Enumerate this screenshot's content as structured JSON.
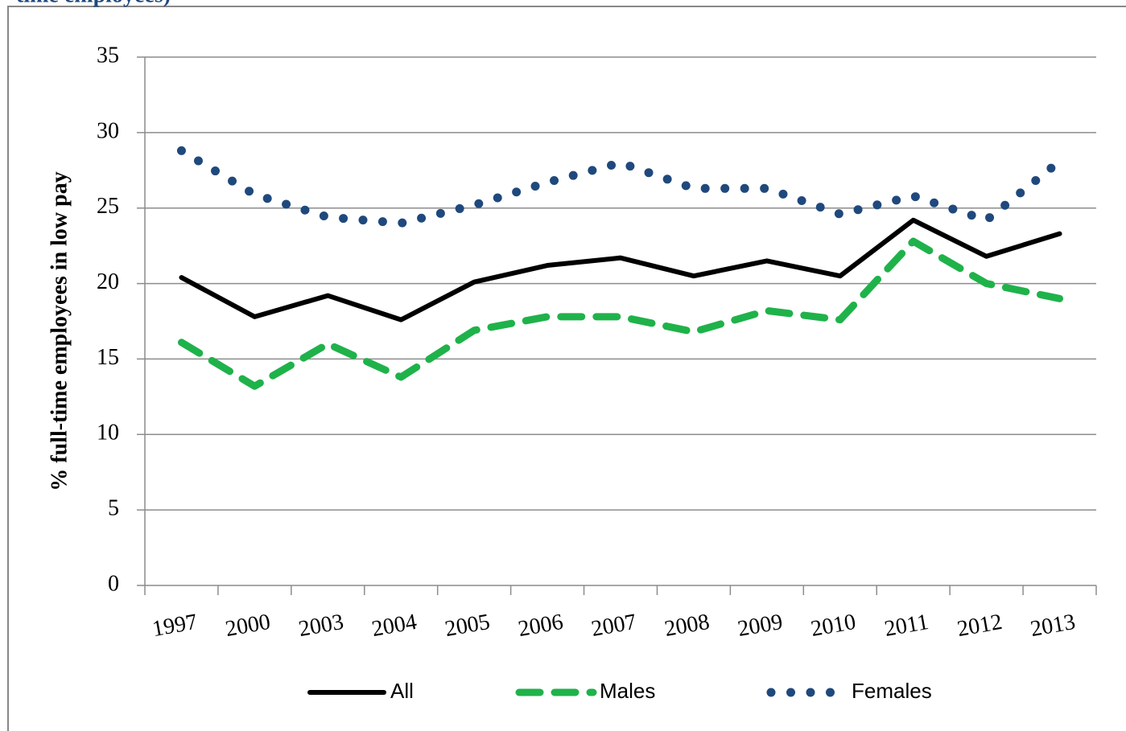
{
  "chart_data": {
    "type": "line",
    "title": "time employees)",
    "y_label": "% full-time employees in low pay",
    "categories": [
      "1997",
      "2000",
      "2003",
      "2004",
      "2005",
      "2006",
      "2007",
      "2008",
      "2009",
      "2010",
      "2011",
      "2012",
      "2013"
    ],
    "series": [
      {
        "name": "All",
        "color": "#000000",
        "dash": "solid",
        "values": [
          20.4,
          17.8,
          19.2,
          17.6,
          20.1,
          21.2,
          21.7,
          20.5,
          21.5,
          20.5,
          24.2,
          21.8,
          23.3
        ]
      },
      {
        "name": "Males",
        "color": "#1fb24a",
        "dash": "dashed",
        "values": [
          16.1,
          13.2,
          16.0,
          13.8,
          16.9,
          17.8,
          17.8,
          16.8,
          18.2,
          17.6,
          22.8,
          20.0,
          19.0
        ]
      },
      {
        "name": "Females",
        "color": "#1f497d",
        "dash": "dotted",
        "values": [
          28.8,
          25.9,
          24.4,
          24.0,
          25.2,
          26.7,
          28.0,
          26.3,
          26.3,
          24.6,
          25.8,
          24.2,
          28.1
        ]
      }
    ],
    "ylim": [
      0,
      35
    ],
    "yticks": [
      0,
      5,
      10,
      15,
      20,
      25,
      30,
      35
    ],
    "grid": true,
    "legend": "bottom"
  }
}
